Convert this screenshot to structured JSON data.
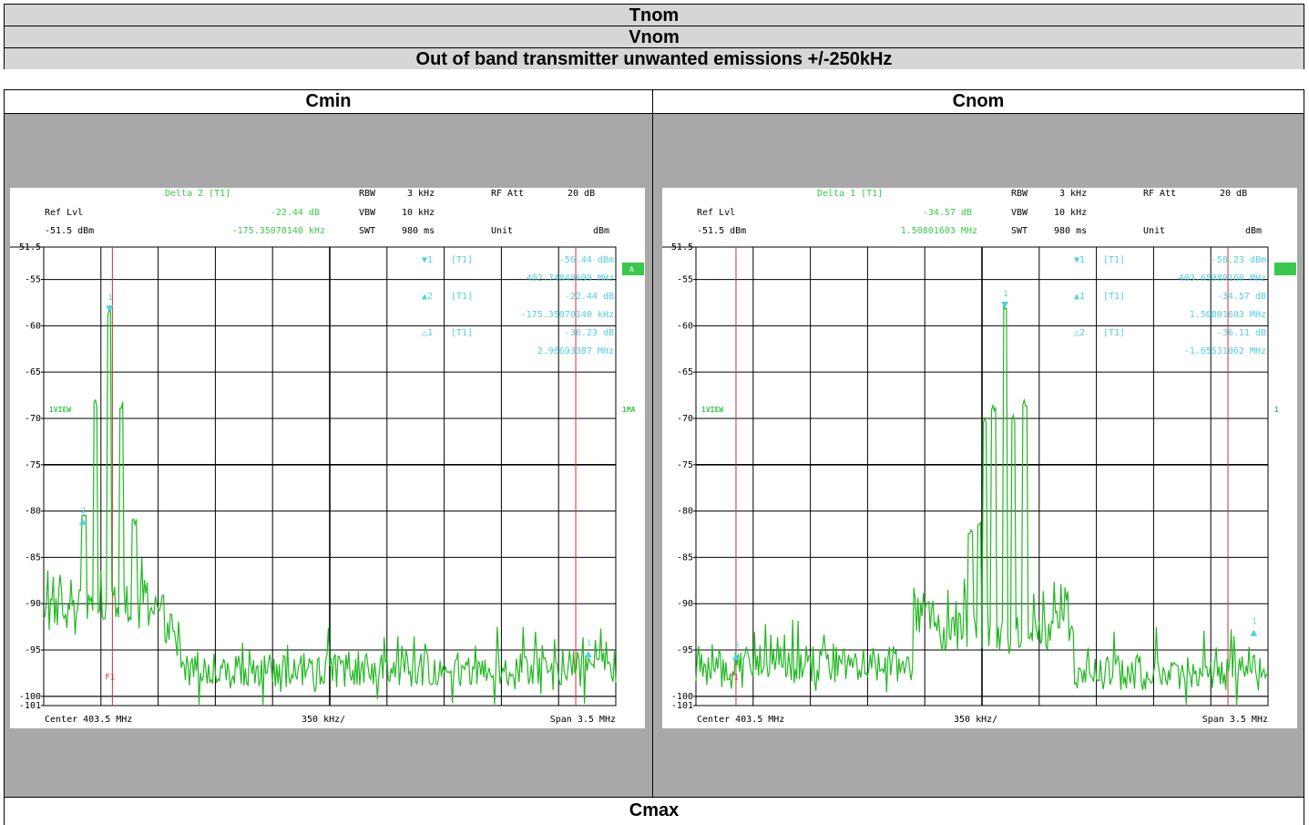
{
  "table": {
    "row1": "Tnom",
    "row2": "Vnom",
    "row3": "Out of band transmitter unwanted emissions +/-250kHz",
    "col_left": "Cmin",
    "col_right": "Cnom",
    "bottom": "Cmax"
  },
  "colors": {
    "grid": "#000000",
    "trace": "#22b822",
    "marker": "#4fd0e0",
    "info": "#3ac84a",
    "line": "#d03030",
    "cell_bg": "#a8a8a8",
    "header_bg": "#d6d6d6"
  },
  "chart_data": [
    {
      "type": "line",
      "name": "cmin",
      "header": {
        "delta_label": "Delta 2 [T1]",
        "rbw_label": "RBW",
        "rbw_val": "3 kHz",
        "rfatt_label": "RF Att",
        "rfatt_val": "20 dB",
        "reflvl_label": "Ref Lvl",
        "delta_db": "-22.44 dB",
        "vbw_label": "VBW",
        "vbw_val": "10 kHz",
        "reflvl_val": "-51.5 dBm",
        "delta_freq": "-175.35070140 kHz",
        "swt_label": "SWT",
        "swt_val": "980 ms",
        "unit_label": "Unit",
        "unit_val": "dBm"
      },
      "yticks": [
        "-51.5",
        "-55",
        "-60",
        "-65",
        "-70",
        "-75",
        "-80",
        "-85",
        "-90",
        "-95",
        "-100",
        "-101"
      ],
      "yvals": [
        -51.5,
        -55,
        -60,
        -65,
        -70,
        -75,
        -80,
        -85,
        -90,
        -95,
        -100,
        -101
      ],
      "ylim": [
        -101,
        -51.5
      ],
      "footer": {
        "center": "Center 403.5 MHz",
        "div": "350 kHz/",
        "span": "Span 3.5 MHz"
      },
      "marker_table": [
        {
          "sym": "▼1",
          "tag": "[T1]",
          "l1": "-56.44 dBm",
          "l2": "402.74849699 MHz"
        },
        {
          "sym": "▲2",
          "tag": "[T1]",
          "l1": "-22.44 dB",
          "l2": "-175.35070140 kHz"
        },
        {
          "sym": "△1",
          "tag": "[T1]",
          "l1": "-36.23 dB",
          "l2": "2.96693387 MHz"
        }
      ],
      "side_a": "A",
      "view_label": "1VIEW",
      "ma_label": "1MA",
      "f1_label": "F1",
      "f1_x": 0.12,
      "f2_x": 0.93,
      "noise_left": -90,
      "noise_right": -97,
      "edge_x": 0.24,
      "peaks": [
        {
          "x": 0.07,
          "v": -80.5,
          "w": 0.004
        },
        {
          "x": 0.09,
          "v": -68.5,
          "w": 0.004
        },
        {
          "x": 0.115,
          "v": -58.5,
          "w": 0.004
        },
        {
          "x": 0.135,
          "v": -68.5,
          "w": 0.004
        },
        {
          "x": 0.158,
          "v": -81,
          "w": 0.004
        }
      ],
      "markers": [
        {
          "x": 0.115,
          "v": -58.2,
          "type": "down",
          "label": "1"
        },
        {
          "x": 0.068,
          "v": -81.2,
          "type": "up",
          "label": "2"
        },
        {
          "x": 0.952,
          "v": -95.5,
          "type": "up",
          "label": "1"
        }
      ]
    },
    {
      "type": "line",
      "name": "cnom",
      "header": {
        "delta_label": "Delta 1 [T1]",
        "rbw_label": "RBW",
        "rbw_val": "3 kHz",
        "rfatt_label": "RF Att",
        "rfatt_val": "20 dB",
        "reflvl_label": "Ref Lvl",
        "delta_db": "-34.57 dB",
        "vbw_label": "VBW",
        "vbw_val": "10 kHz",
        "reflvl_val": "-51.5 dBm",
        "delta_freq": "1.50801603 MHz",
        "swt_label": "SWT",
        "swt_val": "980 ms",
        "unit_label": "Unit",
        "unit_val": "dBm"
      },
      "yticks": [
        "-51.5",
        "-55",
        "-60",
        "-65",
        "-70",
        "-75",
        "-80",
        "-85",
        "-90",
        "-95",
        "-100",
        "-101"
      ],
      "yvals": [
        -51.5,
        -55,
        -60,
        -65,
        -70,
        -75,
        -80,
        -85,
        -90,
        -95,
        -100,
        -101
      ],
      "ylim": [
        -101,
        -51.5
      ],
      "footer": {
        "center": "Center 403.5 MHz",
        "div": "350 kHz/",
        "span": "Span 3.5 MHz"
      },
      "marker_table": [
        {
          "sym": "▼1",
          "tag": "[T1]",
          "l1": "-58.23 dBm",
          "l2": "403.65080160 MHz"
        },
        {
          "sym": "▲1",
          "tag": "[T1]",
          "l1": "-34.57 dB",
          "l2": "1.50801603 MHz"
        },
        {
          "sym": "△2",
          "tag": "[T1]",
          "l1": "-36.11 dB",
          "l2": "-1.65531062 MHz"
        }
      ],
      "side_a": "",
      "view_label": "1VIEW",
      "ma_label": "1",
      "f1_label": "F1",
      "f1_x": 0.07,
      "f2_x": 0.93,
      "noise_left": -96.5,
      "noise_right": -97.5,
      "edge_x": 0.38,
      "edge2_x": 0.66,
      "mid_level": -91,
      "peaks": [
        {
          "x": 0.505,
          "v": -70,
          "w": 0.004
        },
        {
          "x": 0.52,
          "v": -69,
          "w": 0.004
        },
        {
          "x": 0.54,
          "v": -58,
          "w": 0.004
        },
        {
          "x": 0.555,
          "v": -70,
          "w": 0.004
        },
        {
          "x": 0.575,
          "v": -68.5,
          "w": 0.004
        },
        {
          "x": 0.48,
          "v": -82,
          "w": 0.004
        },
        {
          "x": 0.495,
          "v": -81,
          "w": 0.004
        }
      ],
      "markers": [
        {
          "x": 0.54,
          "v": -57.8,
          "type": "down",
          "label": "1"
        },
        {
          "x": 0.07,
          "v": -95.8,
          "type": "up",
          "label": "2"
        },
        {
          "x": 0.975,
          "v": -93.2,
          "type": "up",
          "label": "1"
        }
      ]
    }
  ]
}
